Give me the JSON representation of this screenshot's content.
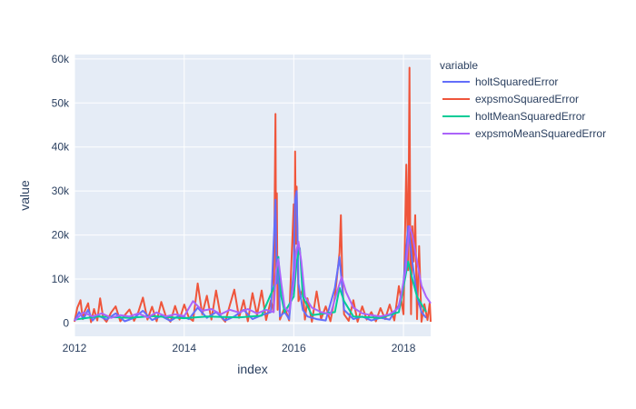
{
  "chart_data": {
    "type": "line",
    "xlabel": "index",
    "ylabel": "value",
    "xlim": [
      "2012-01-01",
      "2018-07-01"
    ],
    "ylim": [
      -3000,
      61000
    ],
    "x_ticks": [
      "2012",
      "2014",
      "2016",
      "2018"
    ],
    "y_ticks": [
      {
        "value": 0,
        "label": "0"
      },
      {
        "value": 10000,
        "label": "10k"
      },
      {
        "value": 20000,
        "label": "20k"
      },
      {
        "value": 30000,
        "label": "30k"
      },
      {
        "value": 40000,
        "label": "40k"
      },
      {
        "value": 50000,
        "label": "50k"
      },
      {
        "value": 60000,
        "label": "60k"
      }
    ],
    "grid": true,
    "legend": {
      "title": "variable",
      "placement": "right"
    },
    "background": "#e5ecf6",
    "series": [
      {
        "name": "holtSquaredError",
        "color": "#636efa",
        "points": [
          [
            "2012-01-01",
            500
          ],
          [
            "2012-02-01",
            2500
          ],
          [
            "2012-03-01",
            1000
          ],
          [
            "2012-04-01",
            3000
          ],
          [
            "2012-05-01",
            600
          ],
          [
            "2012-06-01",
            1800
          ],
          [
            "2012-08-01",
            800
          ],
          [
            "2012-10-01",
            2200
          ],
          [
            "2012-12-01",
            400
          ],
          [
            "2013-02-01",
            1200
          ],
          [
            "2013-04-01",
            2800
          ],
          [
            "2013-06-01",
            700
          ],
          [
            "2013-08-01",
            1600
          ],
          [
            "2013-10-01",
            500
          ],
          [
            "2013-12-01",
            1800
          ],
          [
            "2014-02-01",
            900
          ],
          [
            "2014-04-01",
            3500
          ],
          [
            "2014-06-01",
            1200
          ],
          [
            "2014-08-01",
            2500
          ],
          [
            "2014-10-01",
            600
          ],
          [
            "2014-12-01",
            1500
          ],
          [
            "2015-02-01",
            3000
          ],
          [
            "2015-04-01",
            900
          ],
          [
            "2015-06-01",
            1800
          ],
          [
            "2015-08-01",
            2500
          ],
          [
            "2015-09-01",
            28000
          ],
          [
            "2015-09-10",
            9000
          ],
          [
            "2015-09-20",
            15000
          ],
          [
            "2015-10-01",
            1500
          ],
          [
            "2015-11-01",
            2500
          ],
          [
            "2015-12-01",
            900
          ],
          [
            "2016-01-01",
            12000
          ],
          [
            "2016-01-10",
            28000
          ],
          [
            "2016-01-20",
            30000
          ],
          [
            "2016-02-01",
            9000
          ],
          [
            "2016-03-01",
            3000
          ],
          [
            "2016-04-01",
            1500
          ],
          [
            "2016-06-01",
            900
          ],
          [
            "2016-08-01",
            600
          ],
          [
            "2016-10-01",
            8000
          ],
          [
            "2016-11-01",
            15000
          ],
          [
            "2016-12-01",
            3000
          ],
          [
            "2017-02-01",
            900
          ],
          [
            "2017-04-01",
            1500
          ],
          [
            "2017-06-01",
            600
          ],
          [
            "2017-08-01",
            1200
          ],
          [
            "2017-10-01",
            800
          ],
          [
            "2017-12-01",
            4000
          ],
          [
            "2018-01-01",
            9000
          ],
          [
            "2018-02-01",
            22000
          ],
          [
            "2018-02-15",
            18000
          ],
          [
            "2018-03-01",
            14000
          ],
          [
            "2018-04-01",
            6000
          ],
          [
            "2018-05-01",
            2500
          ],
          [
            "2018-06-01",
            1200
          ]
        ]
      },
      {
        "name": "expsmoSquaredError",
        "color": "#ef553b",
        "points": [
          [
            "2012-01-01",
            300
          ],
          [
            "2012-01-20",
            3500
          ],
          [
            "2012-02-10",
            5200
          ],
          [
            "2012-02-25",
            900
          ],
          [
            "2012-03-10",
            2800
          ],
          [
            "2012-04-01",
            4500
          ],
          [
            "2012-04-20",
            200
          ],
          [
            "2012-05-10",
            3200
          ],
          [
            "2012-06-01",
            600
          ],
          [
            "2012-06-20",
            5600
          ],
          [
            "2012-07-10",
            1200
          ],
          [
            "2012-08-01",
            300
          ],
          [
            "2012-09-01",
            2400
          ],
          [
            "2012-10-01",
            3800
          ],
          [
            "2012-11-01",
            400
          ],
          [
            "2012-12-01",
            1800
          ],
          [
            "2013-01-01",
            3100
          ],
          [
            "2013-02-01",
            500
          ],
          [
            "2013-03-01",
            2500
          ],
          [
            "2013-04-01",
            5800
          ],
          [
            "2013-05-01",
            800
          ],
          [
            "2013-06-01",
            3700
          ],
          [
            "2013-07-01",
            400
          ],
          [
            "2013-08-01",
            4800
          ],
          [
            "2013-09-01",
            1500
          ],
          [
            "2013-10-01",
            300
          ],
          [
            "2013-11-01",
            3900
          ],
          [
            "2013-12-01",
            800
          ],
          [
            "2014-01-01",
            4200
          ],
          [
            "2014-02-01",
            1200
          ],
          [
            "2014-03-01",
            500
          ],
          [
            "2014-04-01",
            9000
          ],
          [
            "2014-05-01",
            2000
          ],
          [
            "2014-06-01",
            6200
          ],
          [
            "2014-07-01",
            800
          ],
          [
            "2014-08-01",
            7400
          ],
          [
            "2014-09-01",
            1500
          ],
          [
            "2014-10-01",
            300
          ],
          [
            "2014-11-01",
            4100
          ],
          [
            "2014-12-01",
            7600
          ],
          [
            "2015-01-01",
            1200
          ],
          [
            "2015-02-01",
            5200
          ],
          [
            "2015-03-01",
            400
          ],
          [
            "2015-04-01",
            6800
          ],
          [
            "2015-05-01",
            1800
          ],
          [
            "2015-06-01",
            7400
          ],
          [
            "2015-07-01",
            700
          ],
          [
            "2015-08-01",
            5200
          ],
          [
            "2015-08-20",
            2500
          ],
          [
            "2015-09-01",
            47500
          ],
          [
            "2015-09-05",
            12000
          ],
          [
            "2015-09-10",
            29500
          ],
          [
            "2015-09-15",
            3000
          ],
          [
            "2015-09-20",
            15000
          ],
          [
            "2015-10-01",
            800
          ],
          [
            "2015-11-01",
            3600
          ],
          [
            "2015-12-01",
            600
          ],
          [
            "2016-01-01",
            27000
          ],
          [
            "2016-01-05",
            8000
          ],
          [
            "2016-01-10",
            39000
          ],
          [
            "2016-01-15",
            18000
          ],
          [
            "2016-01-20",
            31000
          ],
          [
            "2016-02-01",
            5000
          ],
          [
            "2016-03-01",
            7800
          ],
          [
            "2016-03-15",
            800
          ],
          [
            "2016-04-01",
            5600
          ],
          [
            "2016-05-01",
            300
          ],
          [
            "2016-06-01",
            7200
          ],
          [
            "2016-07-01",
            900
          ],
          [
            "2016-08-01",
            3800
          ],
          [
            "2016-09-01",
            400
          ],
          [
            "2016-10-01",
            6000
          ],
          [
            "2016-11-01",
            16000
          ],
          [
            "2016-11-10",
            24500
          ],
          [
            "2016-11-20",
            9000
          ],
          [
            "2016-12-01",
            2000
          ],
          [
            "2017-01-01",
            500
          ],
          [
            "2017-02-01",
            5200
          ],
          [
            "2017-03-01",
            300
          ],
          [
            "2017-04-01",
            3800
          ],
          [
            "2017-05-01",
            800
          ],
          [
            "2017-06-01",
            2500
          ],
          [
            "2017-07-01",
            400
          ],
          [
            "2017-08-01",
            3400
          ],
          [
            "2017-09-01",
            900
          ],
          [
            "2017-10-01",
            4200
          ],
          [
            "2017-11-01",
            600
          ],
          [
            "2017-12-01",
            8400
          ],
          [
            "2018-01-01",
            2000
          ],
          [
            "2018-01-20",
            36000
          ],
          [
            "2018-02-01",
            12000
          ],
          [
            "2018-02-10",
            58000
          ],
          [
            "2018-02-15",
            20000
          ],
          [
            "2018-02-20",
            2000
          ],
          [
            "2018-03-01",
            22000
          ],
          [
            "2018-03-10",
            14000
          ],
          [
            "2018-03-20",
            24500
          ],
          [
            "2018-04-01",
            900
          ],
          [
            "2018-04-15",
            17500
          ],
          [
            "2018-05-01",
            300
          ],
          [
            "2018-05-20",
            4300
          ],
          [
            "2018-06-10",
            700
          ],
          [
            "2018-06-25",
            4700
          ],
          [
            "2018-07-01",
            300
          ]
        ]
      },
      {
        "name": "holtMeanSquaredError",
        "color": "#00cc96",
        "points": [
          [
            "2012-01-01",
            800
          ],
          [
            "2012-06-01",
            1500
          ],
          [
            "2013-01-01",
            1200
          ],
          [
            "2013-06-01",
            1600
          ],
          [
            "2014-01-01",
            1100
          ],
          [
            "2014-06-01",
            1500
          ],
          [
            "2015-01-01",
            1300
          ],
          [
            "2015-06-01",
            1700
          ],
          [
            "2015-09-01",
            9000
          ],
          [
            "2015-09-20",
            15000
          ],
          [
            "2015-10-10",
            6000
          ],
          [
            "2015-11-01",
            2500
          ],
          [
            "2016-01-01",
            6000
          ],
          [
            "2016-01-20",
            14000
          ],
          [
            "2016-02-10",
            17000
          ],
          [
            "2016-03-01",
            6000
          ],
          [
            "2016-05-01",
            1800
          ],
          [
            "2016-10-01",
            2500
          ],
          [
            "2016-11-01",
            8000
          ],
          [
            "2016-12-01",
            5000
          ],
          [
            "2017-02-01",
            1500
          ],
          [
            "2017-08-01",
            1200
          ],
          [
            "2017-12-01",
            2500
          ],
          [
            "2018-02-01",
            14000
          ],
          [
            "2018-03-01",
            10000
          ],
          [
            "2018-04-01",
            6000
          ],
          [
            "2018-06-01",
            2500
          ]
        ]
      },
      {
        "name": "expsmoMeanSquaredError",
        "color": "#ab63fa",
        "points": [
          [
            "2012-01-01",
            600
          ],
          [
            "2012-03-01",
            2400
          ],
          [
            "2012-05-01",
            1500
          ],
          [
            "2012-07-01",
            2200
          ],
          [
            "2012-09-01",
            1200
          ],
          [
            "2012-11-01",
            1800
          ],
          [
            "2013-01-01",
            1500
          ],
          [
            "2013-03-01",
            2200
          ],
          [
            "2013-05-01",
            1300
          ],
          [
            "2013-07-01",
            2400
          ],
          [
            "2013-09-01",
            1500
          ],
          [
            "2013-11-01",
            2000
          ],
          [
            "2014-01-01",
            1600
          ],
          [
            "2014-03-01",
            5000
          ],
          [
            "2014-05-01",
            2800
          ],
          [
            "2014-07-01",
            3200
          ],
          [
            "2014-09-01",
            2000
          ],
          [
            "2014-11-01",
            3000
          ],
          [
            "2015-01-01",
            2400
          ],
          [
            "2015-03-01",
            3200
          ],
          [
            "2015-05-01",
            2200
          ],
          [
            "2015-07-01",
            3000
          ],
          [
            "2015-08-20",
            2500
          ],
          [
            "2015-09-05",
            12000
          ],
          [
            "2015-09-20",
            14500
          ],
          [
            "2015-10-10",
            9000
          ],
          [
            "2015-11-01",
            3500
          ],
          [
            "2015-12-01",
            2500
          ],
          [
            "2016-01-01",
            9000
          ],
          [
            "2016-01-15",
            16000
          ],
          [
            "2016-02-01",
            18500
          ],
          [
            "2016-02-20",
            14000
          ],
          [
            "2016-03-15",
            6000
          ],
          [
            "2016-05-01",
            3500
          ],
          [
            "2016-07-01",
            2500
          ],
          [
            "2016-09-01",
            2000
          ],
          [
            "2016-10-15",
            7000
          ],
          [
            "2016-11-15",
            10500
          ],
          [
            "2016-12-15",
            7000
          ],
          [
            "2017-02-01",
            3500
          ],
          [
            "2017-04-01",
            2200
          ],
          [
            "2017-06-01",
            1800
          ],
          [
            "2017-08-01",
            1500
          ],
          [
            "2017-10-01",
            2000
          ],
          [
            "2017-12-01",
            3500
          ],
          [
            "2018-01-15",
            12000
          ],
          [
            "2018-02-10",
            22000
          ],
          [
            "2018-03-01",
            20000
          ],
          [
            "2018-04-01",
            14000
          ],
          [
            "2018-05-01",
            8500
          ],
          [
            "2018-06-01",
            6000
          ],
          [
            "2018-07-01",
            4500
          ]
        ]
      }
    ]
  }
}
